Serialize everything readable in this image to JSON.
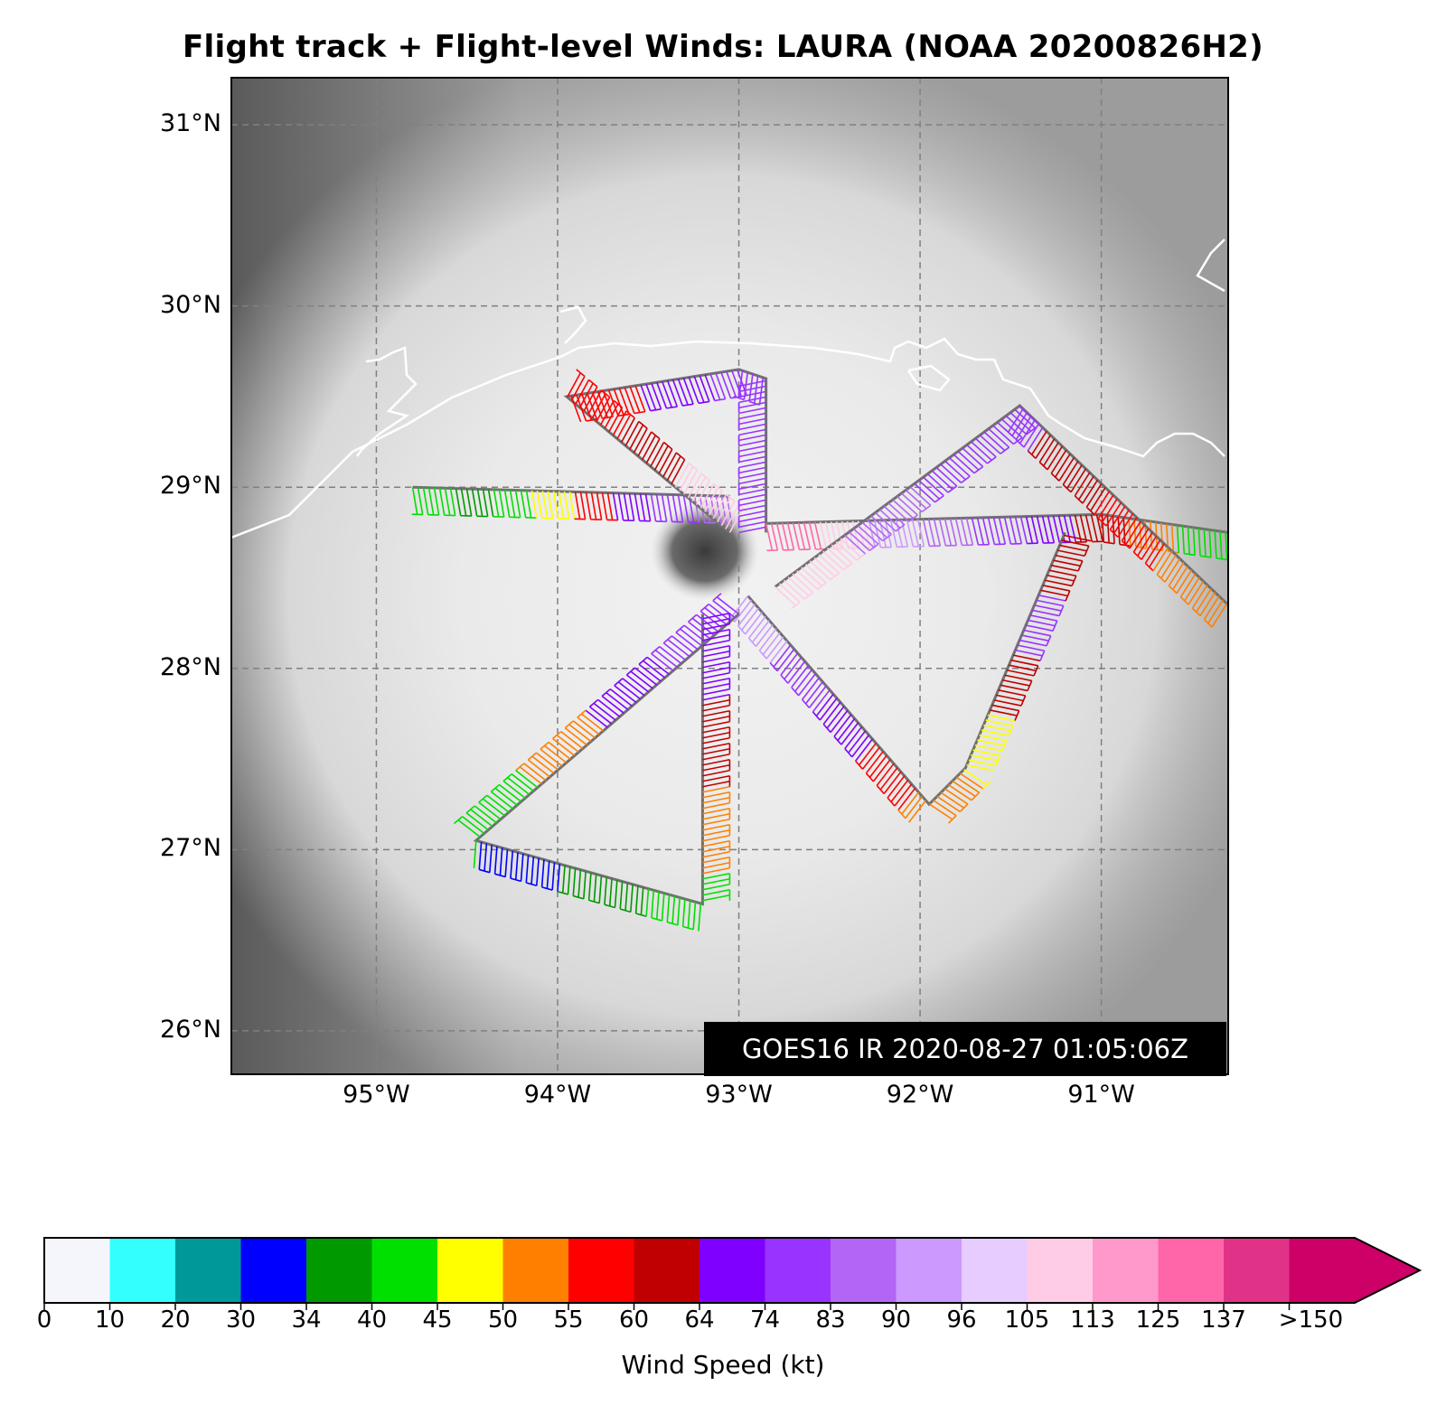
{
  "title": "Flight track + Flight-level Winds: LAURA (NOAA 20200826H2)",
  "source_stamp": "GOES16 IR 2020-08-27 01:05:06Z",
  "map": {
    "lat_ticks": [
      {
        "value": 31,
        "label": "31°N"
      },
      {
        "value": 30,
        "label": "30°N"
      },
      {
        "value": 29,
        "label": "29°N"
      },
      {
        "value": 28,
        "label": "28°N"
      },
      {
        "value": 27,
        "label": "27°N"
      },
      {
        "value": 26,
        "label": "26°N"
      }
    ],
    "lon_ticks": [
      {
        "value": -95,
        "label": "95°W"
      },
      {
        "value": -94,
        "label": "94°W"
      },
      {
        "value": -93,
        "label": "93°W"
      },
      {
        "value": -92,
        "label": "92°W"
      },
      {
        "value": -91,
        "label": "91°W"
      }
    ],
    "extent": {
      "lon": [
        -95.8,
        -90.3
      ],
      "lat": [
        25.76,
        31.26
      ]
    },
    "gridlines": "dashed",
    "storm_center": {
      "lon": -93.13,
      "lat": 28.64
    },
    "background": "grayscale IR imagery",
    "coastline_color": "#ffffff"
  },
  "flight_legs": [
    {
      "name": "west-inbound",
      "points": [
        [
          -94.8,
          29.0
        ],
        [
          -93.05,
          28.95
        ]
      ],
      "speeds": [
        40,
        34,
        40,
        45,
        55,
        64,
        74,
        83
      ]
    },
    {
      "name": "north-triangle",
      "points": [
        [
          -93.05,
          28.75
        ],
        [
          -93.95,
          29.5
        ],
        [
          -93.0,
          29.65
        ],
        [
          -92.85,
          29.6
        ],
        [
          -92.85,
          28.75
        ]
      ],
      "speeds": [
        105,
        60,
        55,
        55,
        64,
        74,
        74,
        74
      ]
    },
    {
      "name": "east-leg",
      "points": [
        [
          -92.85,
          28.8
        ],
        [
          -91.0,
          28.85
        ],
        [
          -90.3,
          28.75
        ]
      ],
      "speeds": [
        125,
        105,
        90,
        83,
        74,
        64,
        60,
        50,
        40
      ]
    },
    {
      "name": "ne-triangle",
      "points": [
        [
          -92.8,
          28.45
        ],
        [
          -91.45,
          29.45
        ],
        [
          -90.3,
          28.35
        ]
      ],
      "speeds": [
        105,
        83,
        74,
        74,
        60,
        55,
        50
      ]
    },
    {
      "name": "se-triangle",
      "points": [
        [
          -92.95,
          28.4
        ],
        [
          -91.95,
          27.25
        ],
        [
          -91.75,
          27.45
        ],
        [
          -91.2,
          28.75
        ]
      ],
      "speeds": [
        90,
        74,
        64,
        55,
        50,
        45,
        60,
        74,
        60
      ]
    },
    {
      "name": "sw-triangle",
      "points": [
        [
          -93.0,
          28.3
        ],
        [
          -94.45,
          27.05
        ],
        [
          -93.2,
          26.7
        ],
        [
          -93.2,
          28.3
        ]
      ],
      "speeds": [
        74,
        64,
        50,
        40,
        30,
        34,
        40,
        50,
        60,
        64
      ]
    }
  ],
  "colorbar": {
    "xlabel": "Wind Speed (kt)",
    "bins": [
      {
        "color": "#f5f6fb",
        "label": "0"
      },
      {
        "color": "#33ffff",
        "label": "10"
      },
      {
        "color": "#009999",
        "label": "20"
      },
      {
        "color": "#0000ff",
        "label": "30"
      },
      {
        "color": "#009900",
        "label": "34"
      },
      {
        "color": "#00e000",
        "label": "40"
      },
      {
        "color": "#ffff00",
        "label": "45"
      },
      {
        "color": "#ff8000",
        "label": "50"
      },
      {
        "color": "#ff0000",
        "label": "55"
      },
      {
        "color": "#c00000",
        "label": "60"
      },
      {
        "color": "#8000ff",
        "label": "64"
      },
      {
        "color": "#9933ff",
        "label": "74"
      },
      {
        "color": "#b366f5",
        "label": "83"
      },
      {
        "color": "#cc99ff",
        "label": "90"
      },
      {
        "color": "#e6ccff",
        "label": "96"
      },
      {
        "color": "#ffcce6",
        "label": "105"
      },
      {
        "color": "#ff99cc",
        "label": "113"
      },
      {
        "color": "#ff66aa",
        "label": "125"
      },
      {
        "color": "#e03388",
        "label": "137"
      },
      {
        "color": "#cc0066",
        "label": ">150"
      }
    ],
    "extend_arrow_color": "#cc0066"
  }
}
